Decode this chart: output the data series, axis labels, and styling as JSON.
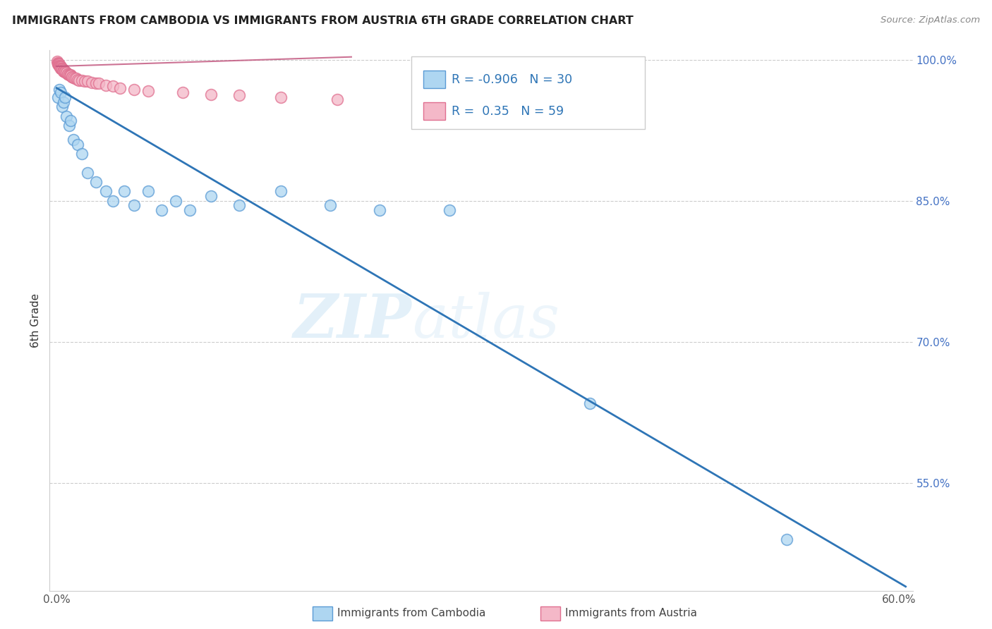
{
  "title": "IMMIGRANTS FROM CAMBODIA VS IMMIGRANTS FROM AUSTRIA 6TH GRADE CORRELATION CHART",
  "source": "Source: ZipAtlas.com",
  "ylabel": "6th Grade",
  "legend_label_1": "Immigrants from Cambodia",
  "legend_label_2": "Immigrants from Austria",
  "R_cambodia": -0.906,
  "N_cambodia": 30,
  "R_austria": 0.35,
  "N_austria": 59,
  "color_cambodia_fill": "#aed6f1",
  "color_cambodia_edge": "#5b9bd5",
  "color_austria_fill": "#f4b8c8",
  "color_austria_edge": "#e07090",
  "line_color_cambodia": "#2e75b6",
  "line_color_austria": "#c0507a",
  "xlim_min": -0.005,
  "xlim_max": 0.61,
  "ylim_min": 0.435,
  "ylim_max": 1.01,
  "yticks": [
    0.55,
    0.7,
    0.85,
    1.0
  ],
  "ytick_labels": [
    "55.0%",
    "70.0%",
    "85.0%",
    "100.0%"
  ],
  "xtick_labels": [
    "0.0%",
    "",
    "",
    "",
    "",
    "",
    "60.0%"
  ],
  "watermark_zip": "ZIP",
  "watermark_atlas": "atlas",
  "bg_color": "#ffffff",
  "grid_color": "#cccccc",
  "cam_x": [
    0.001,
    0.002,
    0.003,
    0.004,
    0.005,
    0.006,
    0.007,
    0.009,
    0.01,
    0.012,
    0.015,
    0.018,
    0.022,
    0.028,
    0.035,
    0.04,
    0.048,
    0.055,
    0.065,
    0.075,
    0.085,
    0.095,
    0.11,
    0.13,
    0.16,
    0.195,
    0.23,
    0.28,
    0.38,
    0.52
  ],
  "cam_y": [
    0.96,
    0.968,
    0.965,
    0.95,
    0.955,
    0.96,
    0.94,
    0.93,
    0.935,
    0.915,
    0.91,
    0.9,
    0.88,
    0.87,
    0.86,
    0.85,
    0.86,
    0.845,
    0.86,
    0.84,
    0.85,
    0.84,
    0.855,
    0.845,
    0.86,
    0.845,
    0.84,
    0.84,
    0.635,
    0.49
  ],
  "aut_x": [
    0.0005,
    0.001,
    0.001,
    0.001,
    0.0015,
    0.0015,
    0.002,
    0.002,
    0.002,
    0.002,
    0.0025,
    0.003,
    0.003,
    0.003,
    0.003,
    0.003,
    0.004,
    0.004,
    0.004,
    0.004,
    0.005,
    0.005,
    0.005,
    0.005,
    0.006,
    0.006,
    0.006,
    0.007,
    0.007,
    0.008,
    0.008,
    0.009,
    0.009,
    0.01,
    0.01,
    0.01,
    0.011,
    0.011,
    0.012,
    0.013,
    0.014,
    0.015,
    0.016,
    0.018,
    0.02,
    0.022,
    0.025,
    0.028,
    0.03,
    0.035,
    0.04,
    0.045,
    0.055,
    0.065,
    0.09,
    0.11,
    0.13,
    0.16,
    0.2
  ],
  "aut_y": [
    0.998,
    0.997,
    0.996,
    0.995,
    0.996,
    0.995,
    0.995,
    0.994,
    0.994,
    0.993,
    0.993,
    0.993,
    0.992,
    0.992,
    0.991,
    0.991,
    0.991,
    0.99,
    0.99,
    0.99,
    0.989,
    0.989,
    0.988,
    0.988,
    0.988,
    0.987,
    0.987,
    0.986,
    0.986,
    0.985,
    0.985,
    0.984,
    0.984,
    0.984,
    0.983,
    0.983,
    0.982,
    0.982,
    0.981,
    0.98,
    0.98,
    0.979,
    0.978,
    0.978,
    0.977,
    0.977,
    0.976,
    0.975,
    0.975,
    0.973,
    0.972,
    0.97,
    0.968,
    0.967,
    0.965,
    0.963,
    0.962,
    0.96,
    0.958
  ],
  "cam_line_x0": 0.0,
  "cam_line_y0": 0.97,
  "cam_line_x1": 0.605,
  "cam_line_y1": 0.44,
  "aut_line_x0": 0.0,
  "aut_line_y0": 0.993,
  "aut_line_x1": 0.21,
  "aut_line_y1": 1.003
}
